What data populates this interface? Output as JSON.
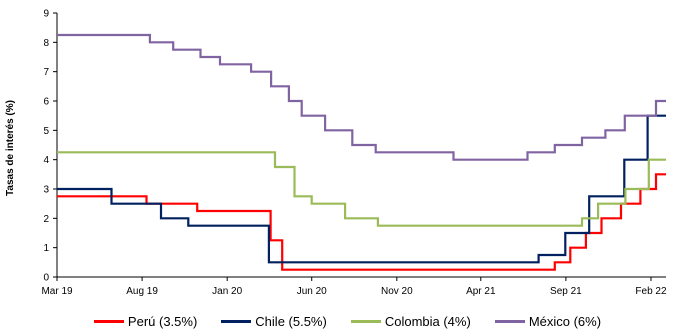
{
  "chart_data": {
    "type": "line",
    "ylabel": "Tasas de interés (%)",
    "xlabel": "",
    "ylim": [
      0,
      9
    ],
    "yticks": [
      "0",
      "1",
      "2",
      "3",
      "4",
      "5",
      "6",
      "7",
      "8",
      "9"
    ],
    "xlim": [
      "2019-03-01",
      "2022-02-28"
    ],
    "xticks": [
      {
        "label": "Mar 19",
        "date": "2019-03-01"
      },
      {
        "label": "Aug 19",
        "date": "2019-08-01"
      },
      {
        "label": "Jan 20",
        "date": "2020-01-01"
      },
      {
        "label": "Jun 20",
        "date": "2020-06-01"
      },
      {
        "label": "Nov 20",
        "date": "2020-11-01"
      },
      {
        "label": "Apr 21",
        "date": "2021-04-01"
      },
      {
        "label": "Sep 21",
        "date": "2021-09-01"
      },
      {
        "label": "Feb 22",
        "date": "2022-02-01"
      }
    ],
    "step": true,
    "series": [
      {
        "name": "Perú (3.5%)",
        "color": "#ff0000",
        "points": [
          [
            "2019-03-01",
            2.75
          ],
          [
            "2019-08-09",
            2.5
          ],
          [
            "2019-11-08",
            2.25
          ],
          [
            "2020-03-19",
            1.25
          ],
          [
            "2020-04-09",
            0.25
          ],
          [
            "2021-08-12",
            0.5
          ],
          [
            "2021-09-09",
            1.0
          ],
          [
            "2021-10-07",
            1.5
          ],
          [
            "2021-11-04",
            2.0
          ],
          [
            "2021-12-09",
            2.5
          ],
          [
            "2022-01-13",
            3.0
          ],
          [
            "2022-02-10",
            3.5
          ],
          [
            "2022-02-28",
            3.5
          ]
        ]
      },
      {
        "name": "Chile (5.5%)",
        "color": "#002060",
        "points": [
          [
            "2019-03-01",
            3.0
          ],
          [
            "2019-06-07",
            2.5
          ],
          [
            "2019-09-04",
            2.0
          ],
          [
            "2019-10-23",
            1.75
          ],
          [
            "2020-03-16",
            0.5
          ],
          [
            "2021-07-14",
            0.75
          ],
          [
            "2021-08-31",
            1.5
          ],
          [
            "2021-10-13",
            2.75
          ],
          [
            "2021-12-15",
            4.0
          ],
          [
            "2022-01-26",
            5.5
          ],
          [
            "2022-02-28",
            5.5
          ]
        ]
      },
      {
        "name": "Colombia (4%)",
        "color": "#9bbb59",
        "points": [
          [
            "2019-03-01",
            4.25
          ],
          [
            "2020-03-27",
            3.75
          ],
          [
            "2020-05-01",
            2.75
          ],
          [
            "2020-06-01",
            2.5
          ],
          [
            "2020-07-31",
            2.0
          ],
          [
            "2020-09-28",
            1.75
          ],
          [
            "2021-09-30",
            2.0
          ],
          [
            "2021-10-29",
            2.5
          ],
          [
            "2021-12-17",
            3.0
          ],
          [
            "2022-01-28",
            4.0
          ],
          [
            "2022-02-28",
            4.0
          ]
        ]
      },
      {
        "name": "México (6%)",
        "color": "#8064a2",
        "points": [
          [
            "2019-03-01",
            8.25
          ],
          [
            "2019-08-15",
            8.0
          ],
          [
            "2019-09-26",
            7.75
          ],
          [
            "2019-11-14",
            7.5
          ],
          [
            "2019-12-19",
            7.25
          ],
          [
            "2020-02-13",
            7.0
          ],
          [
            "2020-03-20",
            6.5
          ],
          [
            "2020-04-21",
            6.0
          ],
          [
            "2020-05-14",
            5.5
          ],
          [
            "2020-06-25",
            5.0
          ],
          [
            "2020-08-13",
            4.5
          ],
          [
            "2020-09-24",
            4.25
          ],
          [
            "2021-02-11",
            4.0
          ],
          [
            "2021-06-24",
            4.25
          ],
          [
            "2021-08-12",
            4.5
          ],
          [
            "2021-09-30",
            4.75
          ],
          [
            "2021-11-11",
            5.0
          ],
          [
            "2021-12-16",
            5.5
          ],
          [
            "2022-02-10",
            6.0
          ],
          [
            "2022-02-28",
            6.0
          ]
        ]
      }
    ],
    "legend_position": "bottom",
    "grid": false
  }
}
